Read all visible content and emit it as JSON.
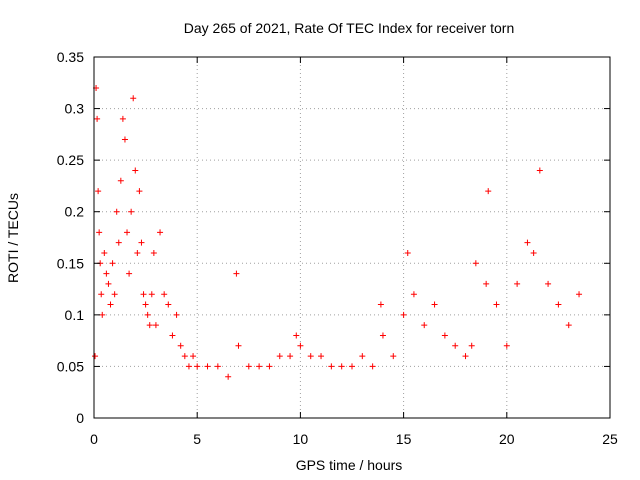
{
  "chart_data": {
    "type": "scatter",
    "title": "Day 265 of 2021, Rate Of TEC Index for receiver torn",
    "xlabel": "GPS time / hours",
    "ylabel": "ROTI / TECUs",
    "xlim": [
      0,
      25
    ],
    "ylim": [
      0,
      0.35
    ],
    "x_ticks": [
      0,
      5,
      10,
      15,
      20,
      25
    ],
    "y_ticks": [
      0,
      0.05,
      0.1,
      0.15,
      0.2,
      0.25,
      0.3,
      0.35
    ],
    "x_tick_labels": [
      "0",
      "5",
      "10",
      "15",
      "20",
      "25"
    ],
    "y_tick_labels": [
      "0",
      "0.05",
      "0.1",
      "0.15",
      "0.2",
      "0.25",
      "0.3",
      "0.35"
    ],
    "grid": true,
    "marker": "plus",
    "color": "#ff0000",
    "series": [
      {
        "x": [
          0.05,
          0.1,
          0.15,
          0.2,
          0.25,
          0.3,
          0.35,
          0.4,
          0.5,
          0.6,
          0.7,
          0.8,
          0.9,
          1.0,
          1.1,
          1.2,
          1.3,
          1.4,
          1.5,
          1.6,
          1.7,
          1.8,
          1.9,
          2.0,
          2.1,
          2.2,
          2.3,
          2.4,
          2.5,
          2.6,
          2.7,
          2.8,
          2.9,
          3.0,
          3.2,
          3.4,
          3.6,
          3.8,
          4.0,
          4.2,
          4.4,
          4.6,
          4.8,
          5.0,
          5.5,
          6.0,
          6.5,
          6.9,
          7.0,
          7.5,
          8.0,
          8.5,
          9.0,
          9.5,
          9.8,
          10.0,
          10.5,
          11.0,
          11.5,
          12.0,
          12.5,
          13.0,
          13.5,
          13.9,
          14.0,
          14.5,
          15.0,
          15.2,
          15.5,
          16.0,
          16.5,
          17.0,
          17.5,
          18.0,
          18.3,
          18.5,
          19.0,
          19.1,
          19.5,
          20.0,
          20.5,
          21.0,
          21.3,
          21.6,
          22.0,
          22.5,
          23.0,
          23.5
        ],
        "y": [
          0.06,
          0.32,
          0.29,
          0.22,
          0.18,
          0.15,
          0.12,
          0.1,
          0.16,
          0.14,
          0.13,
          0.11,
          0.15,
          0.12,
          0.2,
          0.17,
          0.23,
          0.29,
          0.27,
          0.18,
          0.14,
          0.2,
          0.31,
          0.24,
          0.16,
          0.22,
          0.17,
          0.12,
          0.11,
          0.1,
          0.09,
          0.12,
          0.16,
          0.09,
          0.18,
          0.12,
          0.11,
          0.08,
          0.1,
          0.07,
          0.06,
          0.05,
          0.06,
          0.05,
          0.05,
          0.05,
          0.04,
          0.14,
          0.07,
          0.05,
          0.05,
          0.05,
          0.06,
          0.06,
          0.08,
          0.07,
          0.06,
          0.06,
          0.05,
          0.05,
          0.05,
          0.06,
          0.05,
          0.11,
          0.08,
          0.06,
          0.1,
          0.16,
          0.12,
          0.09,
          0.11,
          0.08,
          0.07,
          0.06,
          0.07,
          0.15,
          0.13,
          0.22,
          0.11,
          0.07,
          0.13,
          0.17,
          0.16,
          0.24,
          0.13,
          0.11,
          0.09,
          0.12
        ]
      }
    ]
  }
}
